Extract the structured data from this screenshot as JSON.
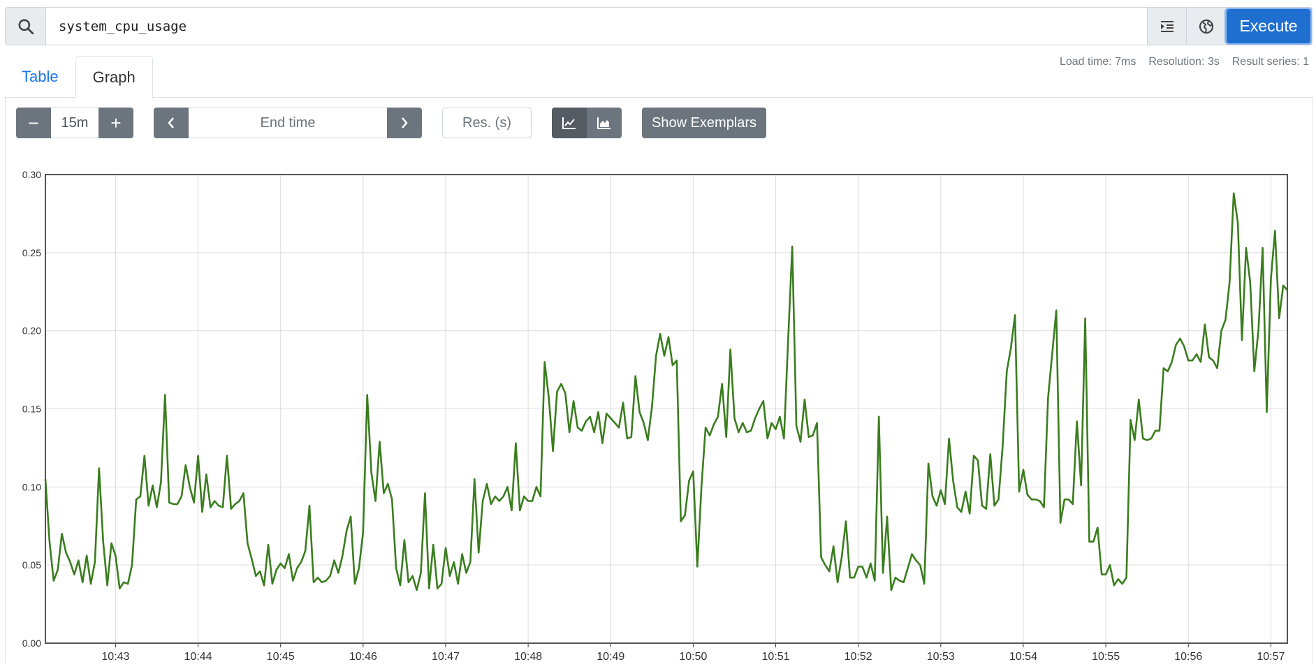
{
  "query": {
    "expression": "system_cpu_usage",
    "execute_label": "Execute",
    "search_icon": "search-icon",
    "format_icon": "indent-icon",
    "metrics_icon": "globe-icon"
  },
  "tabs": [
    {
      "label": "Table",
      "active": false
    },
    {
      "label": "Graph",
      "active": true
    }
  ],
  "status": {
    "load_time": "Load time: 7ms",
    "resolution": "Resolution: 3s",
    "result_series": "Result series: 1"
  },
  "controls": {
    "range_decrease": "−",
    "range_value": "15m",
    "range_increase": "+",
    "end_time_placeholder": "End time",
    "res_placeholder": "Res. (s)",
    "show_exemplars": "Show Exemplars",
    "chart_mode": "lines"
  },
  "colors": {
    "series": "#3a7d1e",
    "execute": "#1f6fd1",
    "button": "#6c757d",
    "link": "#1a73e8"
  },
  "chart_data": {
    "type": "line",
    "xlabel": "",
    "ylabel": "",
    "ylim": [
      0,
      0.3
    ],
    "y_ticks": [
      "0.00",
      "0.05",
      "0.10",
      "0.15",
      "0.20",
      "0.25",
      "0.30"
    ],
    "x_ticks": [
      "10:43",
      "10:44",
      "10:45",
      "10:46",
      "10:47",
      "10:48",
      "10:49",
      "10:50",
      "10:51",
      "10:52",
      "10:53",
      "10:54",
      "10:55",
      "10:56",
      "10:57"
    ],
    "x_start": "10:42:09",
    "x_end": "10:57:12",
    "step_seconds": 3,
    "grid": true,
    "series": [
      {
        "values": [
          0.105,
          0.065,
          0.04,
          0.047,
          0.07,
          0.058,
          0.052,
          0.044,
          0.053,
          0.039,
          0.056,
          0.038,
          0.052,
          0.112,
          0.065,
          0.037,
          0.064,
          0.056,
          0.035,
          0.039,
          0.038,
          0.05,
          0.092,
          0.094,
          0.12,
          0.088,
          0.101,
          0.087,
          0.103,
          0.159,
          0.09,
          0.089,
          0.089,
          0.094,
          0.114,
          0.1,
          0.09,
          0.12,
          0.084,
          0.108,
          0.087,
          0.091,
          0.088,
          0.087,
          0.12,
          0.086,
          0.089,
          0.091,
          0.096,
          0.064,
          0.054,
          0.043,
          0.046,
          0.037,
          0.063,
          0.038,
          0.047,
          0.051,
          0.048,
          0.057,
          0.04,
          0.048,
          0.052,
          0.059,
          0.088,
          0.039,
          0.042,
          0.039,
          0.04,
          0.043,
          0.053,
          0.045,
          0.056,
          0.072,
          0.081,
          0.038,
          0.048,
          0.071,
          0.159,
          0.109,
          0.091,
          0.129,
          0.096,
          0.102,
          0.092,
          0.048,
          0.037,
          0.066,
          0.039,
          0.043,
          0.034,
          0.045,
          0.096,
          0.035,
          0.063,
          0.035,
          0.038,
          0.061,
          0.043,
          0.052,
          0.038,
          0.057,
          0.045,
          0.052,
          0.105,
          0.058,
          0.091,
          0.102,
          0.089,
          0.094,
          0.091,
          0.094,
          0.1,
          0.085,
          0.128,
          0.085,
          0.094,
          0.091,
          0.091,
          0.1,
          0.094,
          0.18,
          0.157,
          0.123,
          0.161,
          0.166,
          0.16,
          0.135,
          0.155,
          0.138,
          0.136,
          0.142,
          0.145,
          0.135,
          0.148,
          0.128,
          0.147,
          0.144,
          0.141,
          0.138,
          0.154,
          0.131,
          0.132,
          0.171,
          0.148,
          0.141,
          0.13,
          0.151,
          0.184,
          0.198,
          0.184,
          0.196,
          0.178,
          0.181,
          0.078,
          0.082,
          0.104,
          0.11,
          0.049,
          0.1,
          0.138,
          0.133,
          0.14,
          0.145,
          0.166,
          0.132,
          0.188,
          0.144,
          0.135,
          0.141,
          0.135,
          0.136,
          0.144,
          0.15,
          0.155,
          0.131,
          0.141,
          0.137,
          0.145,
          0.131,
          0.194,
          0.254,
          0.139,
          0.129,
          0.156,
          0.132,
          0.133,
          0.141,
          0.055,
          0.05,
          0.046,
          0.062,
          0.039,
          0.055,
          0.078,
          0.042,
          0.042,
          0.049,
          0.049,
          0.042,
          0.051,
          0.04,
          0.145,
          0.045,
          0.081,
          0.034,
          0.042,
          0.04,
          0.039,
          0.048,
          0.057,
          0.053,
          0.05,
          0.038,
          0.115,
          0.094,
          0.088,
          0.098,
          0.089,
          0.131,
          0.104,
          0.087,
          0.084,
          0.097,
          0.083,
          0.12,
          0.117,
          0.088,
          0.086,
          0.121,
          0.088,
          0.092,
          0.126,
          0.174,
          0.189,
          0.21,
          0.097,
          0.111,
          0.095,
          0.092,
          0.092,
          0.091,
          0.087,
          0.157,
          0.185,
          0.213,
          0.077,
          0.092,
          0.092,
          0.089,
          0.142,
          0.101,
          0.208,
          0.065,
          0.065,
          0.074,
          0.044,
          0.044,
          0.05,
          0.037,
          0.041,
          0.038,
          0.042,
          0.143,
          0.13,
          0.156,
          0.131,
          0.13,
          0.131,
          0.136,
          0.136,
          0.176,
          0.174,
          0.18,
          0.191,
          0.195,
          0.19,
          0.181,
          0.181,
          0.185,
          0.18,
          0.204,
          0.183,
          0.181,
          0.176,
          0.2,
          0.207,
          0.231,
          0.288,
          0.269,
          0.194,
          0.253,
          0.231,
          0.174,
          0.201,
          0.253,
          0.148,
          0.233,
          0.264,
          0.208,
          0.229,
          0.226
        ]
      }
    ]
  }
}
